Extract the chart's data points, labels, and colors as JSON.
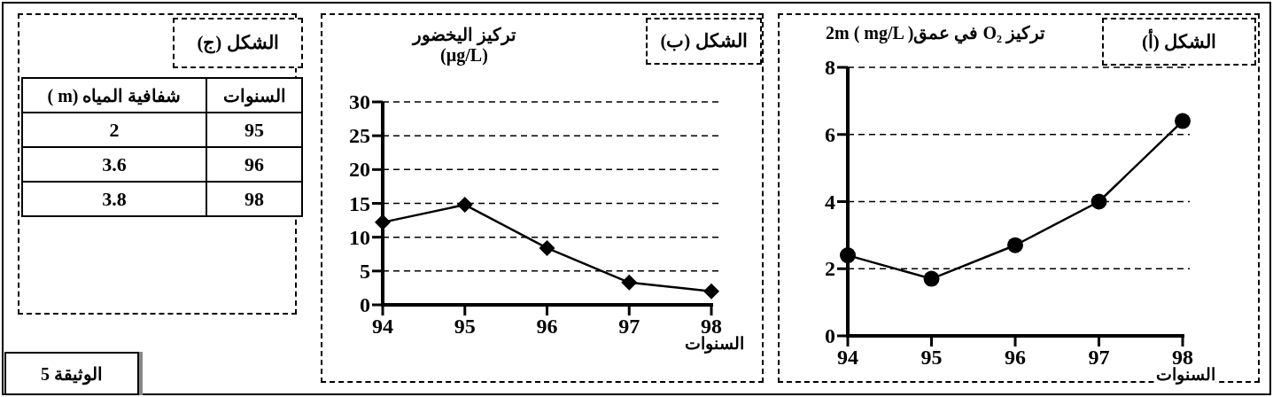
{
  "chart_data": [
    {
      "type": "line",
      "title": "الشكل (أ)",
      "ylabel": "تركيز O₂ في عمق2m ( mg/L )",
      "xlabel": "السنوات",
      "x": [
        94,
        95,
        96,
        97,
        98
      ],
      "xlim": [
        94,
        98
      ],
      "xticks": [
        94,
        95,
        96,
        97,
        98
      ],
      "ylim": [
        0,
        8
      ],
      "yticks": [
        0,
        2,
        4,
        6,
        8
      ],
      "grid": "y",
      "marker": "circle",
      "line_style": "solid",
      "series": [
        {
          "color": "#000000",
          "values": [
            2.4,
            1.7,
            2.7,
            4.0,
            6.4
          ]
        }
      ]
    },
    {
      "type": "line",
      "title": "الشكل (ب)",
      "ylabel": "تركيز اليخضور (µg/L)",
      "xlabel": "السنوات",
      "x": [
        94,
        95,
        96,
        97,
        98
      ],
      "xlim": [
        94,
        98
      ],
      "xticks": [
        94,
        95,
        96,
        97,
        98
      ],
      "ylim": [
        0,
        30
      ],
      "yticks": [
        0,
        5,
        10,
        15,
        20,
        25,
        30
      ],
      "grid": "y",
      "marker": "diamond",
      "line_style": "solid",
      "series": [
        {
          "color": "#000000",
          "values": [
            12.2,
            14.8,
            8.4,
            3.3,
            2.0
          ]
        }
      ]
    },
    {
      "type": "other",
      "title": "الشكل (ج)",
      "xlabel": "السنوات",
      "ylabel": "شفافية المياه (m )",
      "categories": [
        "95",
        "96",
        "98"
      ],
      "values": [
        2,
        3.6,
        3.8
      ],
      "data_labels": true,
      "annotations": [
        "الوثيقة 5"
      ]
    }
  ]
}
